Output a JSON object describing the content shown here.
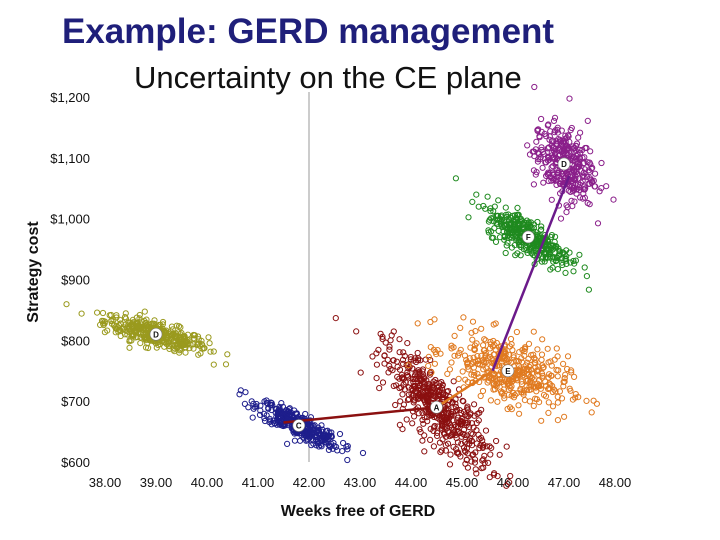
{
  "slide": {
    "title": "Example: GERD management",
    "subtitle": "Uncertainty on the CE plane"
  },
  "chart_data": {
    "type": "scatter",
    "title": "",
    "xlabel": "Weeks free of GERD",
    "ylabel": "Strategy cost",
    "xlim": [
      38,
      48
    ],
    "ylim": [
      600,
      1200
    ],
    "x_ticks": [
      "38.00",
      "39.00",
      "40.00",
      "41.00",
      "42.00",
      "43.00",
      "44.00",
      "45.00",
      "46.00",
      "47.00",
      "48.00"
    ],
    "y_ticks": [
      "$600",
      "$700",
      "$800",
      "$900",
      "$1,000",
      "$1,100",
      "$1,200"
    ],
    "reference_line_x": 42.0,
    "grid": false,
    "series": [
      {
        "label": "D",
        "mean_x": 39.0,
        "mean_y": 810,
        "color": "#9a9a1e",
        "spread_x": 2.4,
        "spread_y": 45,
        "slope": -26,
        "count": 380
      },
      {
        "label": "C",
        "mean_x": 41.8,
        "mean_y": 660,
        "color": "#1e1e8c",
        "spread_x": 1.9,
        "spread_y": 45,
        "slope": -40,
        "count": 360
      },
      {
        "label": "A",
        "mean_x": 44.5,
        "mean_y": 690,
        "color": "#8b1010",
        "spread_x": 2.5,
        "spread_y": 130,
        "slope": -90,
        "count": 480
      },
      {
        "label": "E",
        "mean_x": 45.9,
        "mean_y": 750,
        "color": "#e07a20",
        "spread_x": 2.8,
        "spread_y": 120,
        "slope": -35,
        "count": 420
      },
      {
        "label": "F",
        "mean_x": 46.3,
        "mean_y": 970,
        "color": "#1f8a1f",
        "spread_x": 2.0,
        "spread_y": 70,
        "slope": -45,
        "count": 360
      },
      {
        "label": "D",
        "mean_x": 47.0,
        "mean_y": 1090,
        "color": "#8a1f8a",
        "spread_x": 1.4,
        "spread_y": 140,
        "slope": -20,
        "count": 330
      }
    ],
    "frontier": [
      {
        "from": [
          41.5,
          665
        ],
        "to": [
          44.5,
          690
        ],
        "color": "#8b1010"
      },
      {
        "from": [
          44.5,
          690
        ],
        "to": [
          45.6,
          750
        ],
        "color": "#e07a20"
      },
      {
        "from": [
          45.6,
          750
        ],
        "to": [
          47.1,
          1070
        ],
        "color": "#6b1a8a"
      }
    ]
  }
}
